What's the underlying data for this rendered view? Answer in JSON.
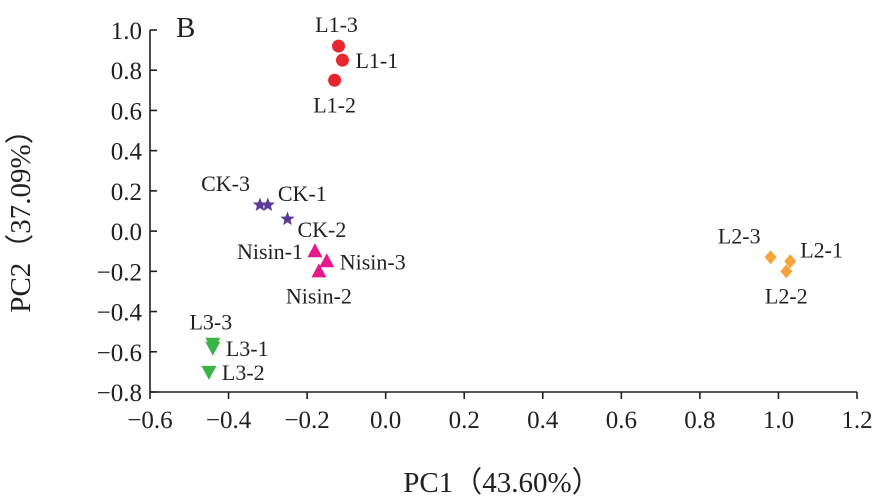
{
  "chart_data": {
    "type": "scatter",
    "panel_label": "B",
    "title": "",
    "xlabel": "PC1（43.60%）",
    "ylabel": "PC2（37.09%）",
    "xlim": [
      -0.6,
      1.2
    ],
    "ylim": [
      -0.8,
      1.0
    ],
    "x_ticks": [
      -0.6,
      -0.4,
      -0.2,
      0.0,
      0.2,
      0.4,
      0.6,
      0.8,
      1.0,
      1.2
    ],
    "x_tick_labels": [
      "−0.6",
      "−0.4",
      "−0.2",
      "0.0",
      "0.2",
      "0.4",
      "0.6",
      "0.8",
      "1.0",
      "1.2"
    ],
    "y_ticks": [
      1.0,
      0.8,
      0.6,
      0.4,
      0.2,
      0.0,
      -0.2,
      -0.4,
      -0.6,
      -0.8
    ],
    "y_tick_labels": [
      "1.0",
      "0.8",
      "0.6",
      "0.4",
      "0.2",
      "0.0",
      "−0.2",
      "−0.4",
      "−0.6",
      "−0.8"
    ],
    "grid": false,
    "series": [
      {
        "name": "L1",
        "marker": "circle",
        "color": "#e8262d",
        "points": [
          {
            "label": "L1-1",
            "x": -0.11,
            "y": 0.85,
            "label_side": "right"
          },
          {
            "label": "L1-2",
            "x": -0.13,
            "y": 0.75,
            "label_side": "below"
          },
          {
            "label": "L1-3",
            "x": -0.12,
            "y": 0.92,
            "label_side": "above"
          }
        ]
      },
      {
        "name": "CK",
        "marker": "star",
        "color": "#5b3a97",
        "points": [
          {
            "label": "CK-1",
            "x": -0.3,
            "y": 0.13,
            "label_side": "right-up"
          },
          {
            "label": "CK-2",
            "x": -0.25,
            "y": 0.06,
            "label_side": "right-down"
          },
          {
            "label": "CK-3",
            "x": -0.32,
            "y": 0.13,
            "label_side": "above-left"
          }
        ]
      },
      {
        "name": "Nisin",
        "marker": "triangle-up",
        "color": "#e5198b",
        "points": [
          {
            "label": "Nisin-1",
            "x": -0.18,
            "y": -0.1,
            "label_side": "left"
          },
          {
            "label": "Nisin-2",
            "x": -0.17,
            "y": -0.2,
            "label_side": "below"
          },
          {
            "label": "Nisin-3",
            "x": -0.15,
            "y": -0.15,
            "label_side": "right"
          }
        ]
      },
      {
        "name": "L2",
        "marker": "diamond",
        "color": "#f5a33a",
        "points": [
          {
            "label": "L2-1",
            "x": 1.03,
            "y": -0.15,
            "label_side": "right-up"
          },
          {
            "label": "L2-2",
            "x": 1.02,
            "y": -0.2,
            "label_side": "below"
          },
          {
            "label": "L2-3",
            "x": 0.98,
            "y": -0.13,
            "label_side": "above-left"
          }
        ]
      },
      {
        "name": "L3",
        "marker": "triangle-down",
        "color": "#3cb44a",
        "points": [
          {
            "label": "L3-1",
            "x": -0.44,
            "y": -0.58,
            "label_side": "right"
          },
          {
            "label": "L3-2",
            "x": -0.45,
            "y": -0.7,
            "label_side": "right"
          },
          {
            "label": "L3-3",
            "x": -0.44,
            "y": -0.56,
            "label_side": "above"
          }
        ]
      }
    ]
  }
}
